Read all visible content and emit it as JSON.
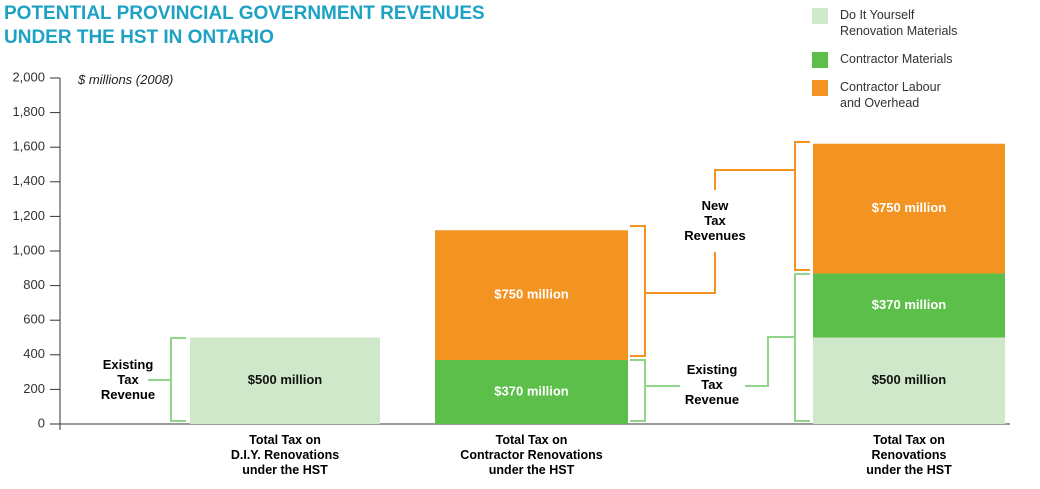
{
  "chart_data": {
    "type": "bar",
    "stacked": true,
    "title": "POTENTIAL PROVINCIAL GOVERNMENT REVENUES\nUNDER THE HST IN ONTARIO",
    "y_axis_label": "$ millions (2008)",
    "categories": [
      "Total Tax on\nD.I.Y. Renovations\nunder the HST",
      "Total Tax on\nContractor Renovations\nunder the HST",
      "Total Tax on\nRenovations\nunder the HST"
    ],
    "series": [
      {
        "name": "Do It Yourself\nRenovation Materials",
        "color": "#cfe8c9",
        "values": [
          500,
          null,
          500
        ],
        "value_labels": [
          "$500 million",
          null,
          "$500 million"
        ]
      },
      {
        "name": "Contractor Materials",
        "color": "#5cbf4a",
        "values": [
          null,
          370,
          370
        ],
        "value_labels": [
          null,
          "$370 million",
          "$370 million"
        ]
      },
      {
        "name": "Contractor Labour\nand Overhead",
        "color": "#f39321",
        "values": [
          null,
          750,
          750
        ],
        "value_labels": [
          null,
          "$750 million",
          "$750 million"
        ]
      }
    ],
    "ylim": [
      0,
      2000
    ],
    "yticks": [
      0,
      200,
      400,
      600,
      800,
      {
        "value": 1000,
        "label": "1,000"
      },
      {
        "value": 1200,
        "label": "1,200"
      },
      {
        "value": 1400,
        "label": "1,400"
      },
      {
        "value": 1600,
        "label": "1,600"
      },
      {
        "value": 1800,
        "label": "1,800"
      },
      {
        "value": 2000,
        "label": "2,000"
      }
    ],
    "annotations": [
      "Existing\nTax\nRevenue",
      "Existing\nTax\nRevenue",
      "New\nTax\nRevenues"
    ],
    "legend": "top-right"
  }
}
